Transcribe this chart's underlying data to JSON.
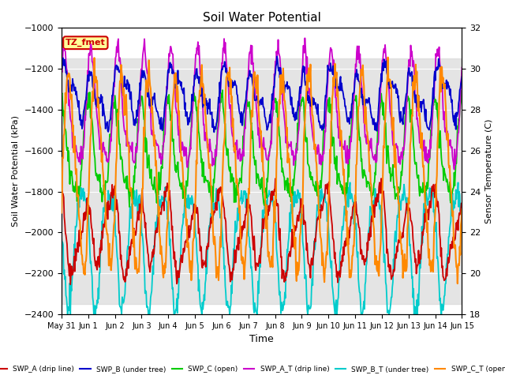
{
  "title": "Soil Water Potential",
  "xlabel": "Time",
  "ylabel_left": "Soil Water Potential (kPa)",
  "ylabel_right": "Sensor Temperature (C)",
  "ylim_left": [
    -2400,
    -1000
  ],
  "ylim_right": [
    18,
    32
  ],
  "yticks_left": [
    -2400,
    -2200,
    -2000,
    -1800,
    -1600,
    -1400,
    -1200,
    -1000
  ],
  "yticks_right": [
    18,
    20,
    22,
    24,
    26,
    28,
    30,
    32
  ],
  "xtick_labels": [
    "May 31",
    "Jun 1",
    "Jun 2",
    "Jun 3",
    "Jun 4",
    "Jun 5",
    "Jun 6",
    "Jun 7",
    "Jun 8",
    "Jun 9",
    "Jun 10",
    "Jun 11",
    "Jun 12",
    "Jun 13",
    "Jun 14",
    "Jun 15"
  ],
  "shaded_region": [
    -2350,
    -1150
  ],
  "annotation_text": "TZ_fmet",
  "annotation_color": "#cc0000",
  "annotation_bg": "#ffff99",
  "legend_entries": [
    {
      "label": "SWP_A (drip line)",
      "color": "#cc0000"
    },
    {
      "label": "SWP_B (under tree)",
      "color": "#0000cc"
    },
    {
      "label": "SWP_C (open)",
      "color": "#00cc00"
    },
    {
      "label": "SWP_A_T (drip line)",
      "color": "#cc00cc"
    },
    {
      "label": "SWP_B_T (under tree)",
      "color": "#00cccc"
    },
    {
      "label": "SWP_C_T (open)",
      "color": "#ff8800"
    }
  ],
  "colors": {
    "blue": "#0000cc",
    "green": "#00cc00",
    "magenta": "#cc00cc",
    "cyan": "#00cccc",
    "red": "#cc0000",
    "orange": "#ff8800"
  },
  "seed": 42,
  "figsize": [
    6.4,
    4.8
  ],
  "dpi": 100
}
